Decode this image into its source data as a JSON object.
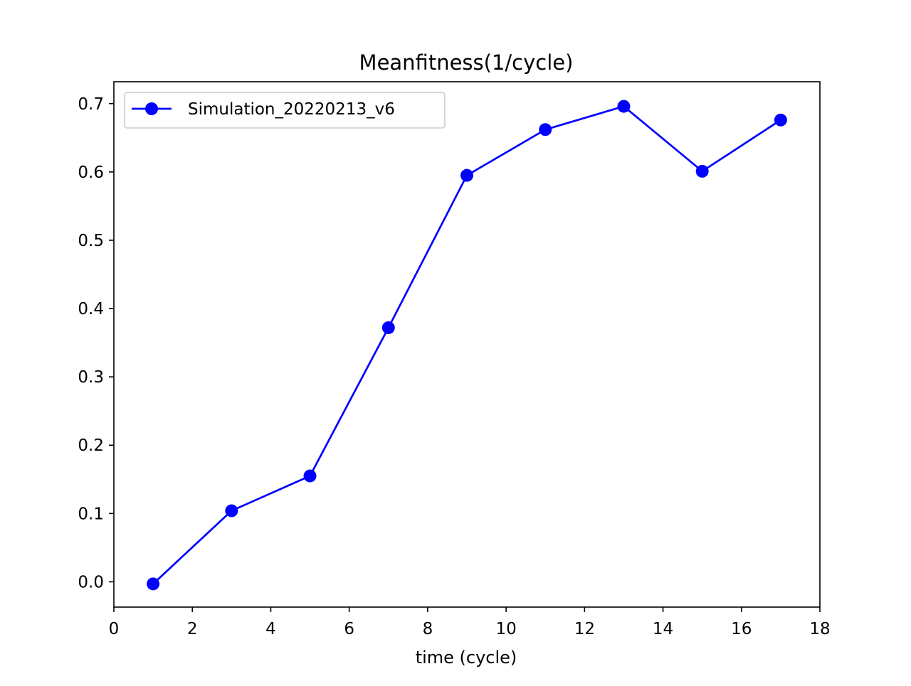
{
  "chart_data": {
    "type": "line",
    "title": "Meanfitness(1/cycle)",
    "xlabel": "time (cycle)",
    "ylabel": "",
    "xlim": [
      0,
      18
    ],
    "ylim": [
      -0.037,
      0.732
    ],
    "xticks": [
      0,
      2,
      4,
      6,
      8,
      10,
      12,
      14,
      16,
      18
    ],
    "yticks": [
      0.0,
      0.1,
      0.2,
      0.3,
      0.4,
      0.5,
      0.6,
      0.7
    ],
    "xtick_labels": [
      "0",
      "2",
      "4",
      "6",
      "8",
      "10",
      "12",
      "14",
      "16",
      "18"
    ],
    "ytick_labels": [
      "0.0",
      "0.1",
      "0.2",
      "0.3",
      "0.4",
      "0.5",
      "0.6",
      "0.7"
    ],
    "grid": false,
    "legend_position": "top-left",
    "series": [
      {
        "name": "Simulation_20220213_v6",
        "color": "#0000ff",
        "marker": "circle",
        "x": [
          1,
          3,
          5,
          7,
          9,
          11,
          13,
          15,
          17
        ],
        "y": [
          -0.003,
          0.104,
          0.155,
          0.372,
          0.595,
          0.662,
          0.696,
          0.601,
          0.676
        ]
      }
    ]
  }
}
